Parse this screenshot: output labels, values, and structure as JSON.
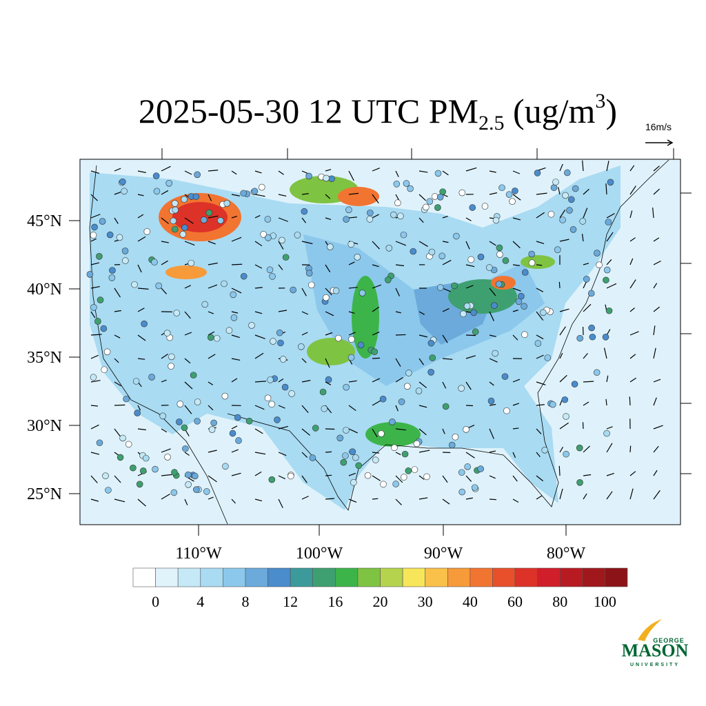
{
  "title": {
    "main": "2025-05-30 12 UTC PM",
    "sub": "2.5",
    "mid": " (ug/m",
    "sup": "3",
    "end": ")"
  },
  "vector_reference": "16m/s",
  "map": {
    "lat_labels": [
      "45°N",
      "40°N",
      "35°N",
      "30°N",
      "25°N"
    ],
    "lon_labels": [
      "110°W",
      "100°W",
      "90°W",
      "80°W"
    ]
  },
  "colorbar": {
    "colors": [
      "#ffffff",
      "#e0f3fb",
      "#c6e9f7",
      "#a9dbf2",
      "#8cc8ec",
      "#6baadb",
      "#4a8ccc",
      "#3d9a9a",
      "#3ea070",
      "#3cb44a",
      "#7fc342",
      "#b6d34e",
      "#f7e65a",
      "#f9c04a",
      "#f79a3a",
      "#f27431",
      "#e8502b",
      "#dc3228",
      "#d01e2a",
      "#b81a22",
      "#a0181c",
      "#8c1418"
    ],
    "labels": [
      0,
      4,
      8,
      12,
      16,
      20,
      30,
      40,
      60,
      80,
      100
    ]
  },
  "logo": {
    "top": "GEORGE",
    "name": "MASON",
    "bottom": "UNIVERSITY"
  }
}
